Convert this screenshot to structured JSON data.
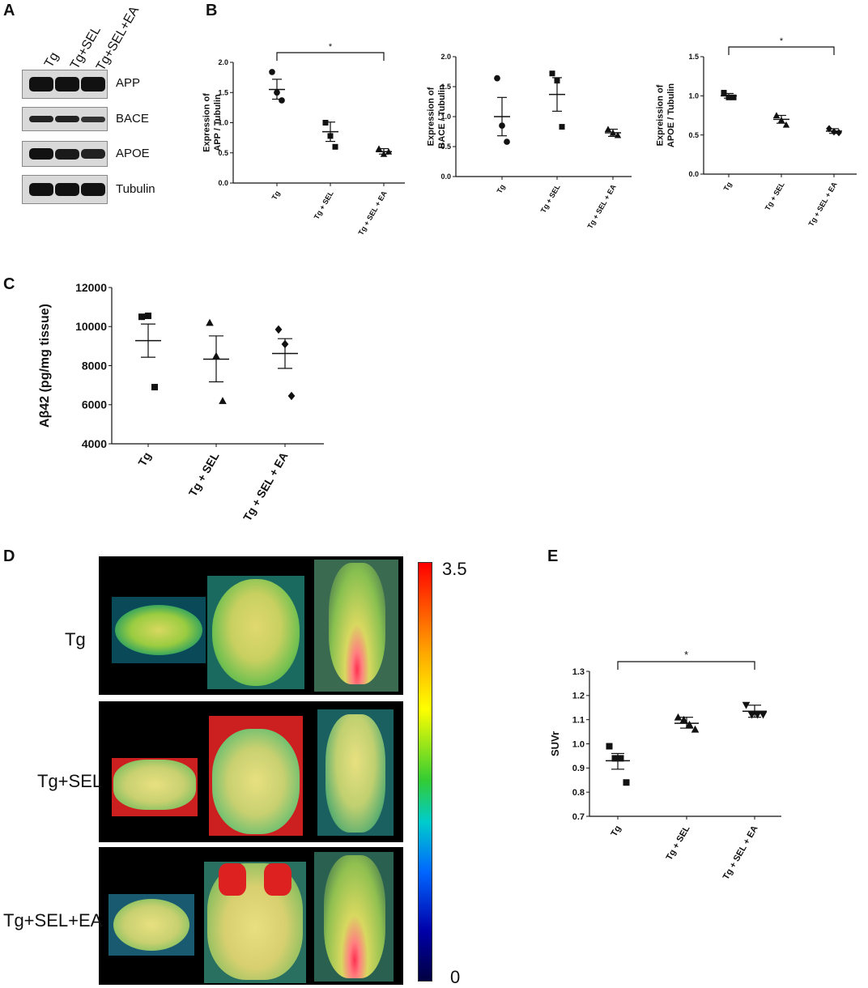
{
  "panels": {
    "A": "A",
    "B": "B",
    "C": "C",
    "D": "D",
    "E": "E"
  },
  "western_blot": {
    "lanes": [
      "Tg",
      "Tg+SEL",
      "Tg+SEL+EA"
    ],
    "proteins": [
      "APP",
      "BACE",
      "APOE",
      "Tubulin"
    ],
    "colors": {
      "band": "#111111",
      "box": "#d9d9d9"
    }
  },
  "chart_data": [
    {
      "id": "B1",
      "type": "scatter",
      "categories": [
        "Tg",
        "Tg + SEL",
        "Tg + SEL + EA"
      ],
      "points": [
        [
          1.84,
          1.5,
          1.37
        ],
        [
          1.0,
          0.78,
          0.6
        ],
        [
          0.57,
          0.48,
          0.52
        ]
      ],
      "markers": [
        "circle",
        "square",
        "triangle"
      ],
      "mean": [
        1.55,
        0.85,
        0.52
      ],
      "sem_upper": [
        1.72,
        1.01,
        0.57
      ],
      "sem_lower": [
        1.39,
        0.69,
        0.48
      ],
      "ylabel": "Expression of APP / Tubulin",
      "ylim": [
        0.0,
        2.0
      ],
      "yticks": [
        "0.0",
        "0.5",
        "1.0",
        "1.5",
        "2.0"
      ],
      "significance": {
        "from": 0,
        "to": 2,
        "label": "*"
      }
    },
    {
      "id": "B2",
      "type": "scatter",
      "categories": [
        "Tg",
        "Tg + SEL",
        "Tg + SEL + EA"
      ],
      "points": [
        [
          1.64,
          0.85,
          0.58
        ],
        [
          1.72,
          1.6,
          0.83
        ],
        [
          0.79,
          0.73,
          0.69
        ]
      ],
      "markers": [
        "circle",
        "square",
        "triangle"
      ],
      "mean": [
        1.0,
        1.37,
        0.73
      ],
      "sem_upper": [
        1.32,
        1.65,
        0.79
      ],
      "sem_lower": [
        0.68,
        1.09,
        0.67
      ],
      "ylabel": "Expression of BACE / Tubulin",
      "ylim": [
        0.0,
        2.0
      ],
      "yticks": [
        "0.0",
        "0.5",
        "1.0",
        "1.5",
        "2.0"
      ],
      "significance": null
    },
    {
      "id": "B3",
      "type": "scatter",
      "categories": [
        "Tg",
        "Tg + SEL",
        "Tg + SEL + EA"
      ],
      "points": [
        [
          1.04,
          0.98,
          0.98
        ],
        [
          0.75,
          0.69,
          0.63
        ],
        [
          0.58,
          0.54,
          0.53
        ]
      ],
      "markers": [
        "square",
        "triangle",
        "diamond"
      ],
      "mean": [
        1.0,
        0.7,
        0.55
      ],
      "sem_upper": [
        1.03,
        0.75,
        0.58
      ],
      "sem_lower": [
        0.97,
        0.65,
        0.52
      ],
      "ylabel": "Expreission of APOE / Tubulin",
      "ylim": [
        0.0,
        1.5
      ],
      "yticks": [
        "0.0",
        "0.5",
        "1.0",
        "1.5"
      ],
      "significance": {
        "from": 0,
        "to": 2,
        "label": "*"
      }
    },
    {
      "id": "C",
      "type": "scatter",
      "categories": [
        "Tg",
        "Tg + SEL",
        "Tg + SEL + EA"
      ],
      "points": [
        [
          10500,
          10550,
          6900
        ],
        [
          10200,
          8500,
          6200
        ],
        [
          9850,
          9100,
          6450
        ]
      ],
      "markers": [
        "square",
        "triangle",
        "diamond"
      ],
      "mean": [
        9280,
        8330,
        8620
      ],
      "sem_upper": [
        10130,
        9520,
        9380
      ],
      "sem_lower": [
        8430,
        7170,
        7860
      ],
      "ylabel": "Aβ42 (pg/mg tissue)",
      "ylim": [
        4000,
        12000
      ],
      "yticks": [
        "4000",
        "6000",
        "8000",
        "10000",
        "12000"
      ],
      "significance": null
    },
    {
      "id": "E",
      "type": "scatter",
      "categories": [
        "Tg",
        "Tg + SEL",
        "Tg + SEL + EA"
      ],
      "points": [
        [
          0.99,
          0.94,
          0.94,
          0.84
        ],
        [
          1.11,
          1.1,
          1.08,
          1.06
        ],
        [
          1.16,
          1.12,
          1.12,
          1.12
        ]
      ],
      "markers": [
        "square",
        "triangle",
        "triangle-down"
      ],
      "mean": [
        0.93,
        1.085,
        1.135
      ],
      "sem_upper": [
        0.96,
        1.11,
        1.16
      ],
      "sem_lower": [
        0.895,
        1.065,
        1.11
      ],
      "ylabel": "SUVr",
      "ylim": [
        0.7,
        1.3
      ],
      "yticks": [
        "0.7",
        "0.8",
        "0.9",
        "1.0",
        "1.1",
        "1.2",
        "1.3"
      ],
      "significance": {
        "from": 0,
        "to": 2,
        "label": "*"
      }
    }
  ],
  "pet_images": {
    "rows": [
      "Tg",
      "Tg+SEL",
      "Tg+SEL+EA"
    ],
    "colorbar": {
      "max": "3.5",
      "min": "0"
    }
  }
}
